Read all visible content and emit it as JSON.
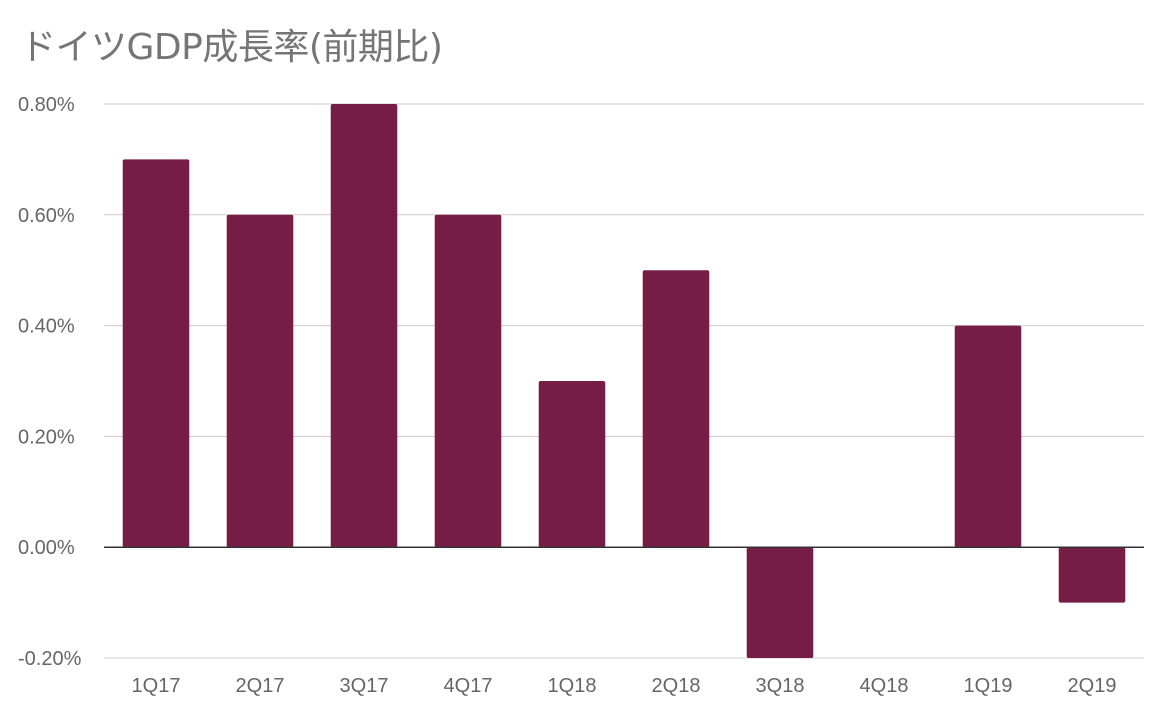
{
  "chart_data": {
    "type": "bar",
    "title": "ドイツGDP成長率(前期比)",
    "categories": [
      "1Q17",
      "2Q17",
      "3Q17",
      "4Q17",
      "1Q18",
      "2Q18",
      "3Q18",
      "4Q18",
      "1Q19",
      "2Q19"
    ],
    "values": [
      0.7,
      0.6,
      0.8,
      0.6,
      0.3,
      0.5,
      -0.2,
      0.0,
      0.4,
      -0.1
    ],
    "value_unit": "%",
    "ylim": [
      -0.2,
      0.8
    ],
    "yticks": [
      -0.2,
      0.0,
      0.2,
      0.4,
      0.6,
      0.8
    ],
    "ytick_labels": [
      "-0.20%",
      "0.00%",
      "0.20%",
      "0.40%",
      "0.60%",
      "0.80%"
    ],
    "xlabel": "",
    "ylabel": "",
    "grid": true,
    "legend": "none",
    "bar_color": "#761d47"
  }
}
